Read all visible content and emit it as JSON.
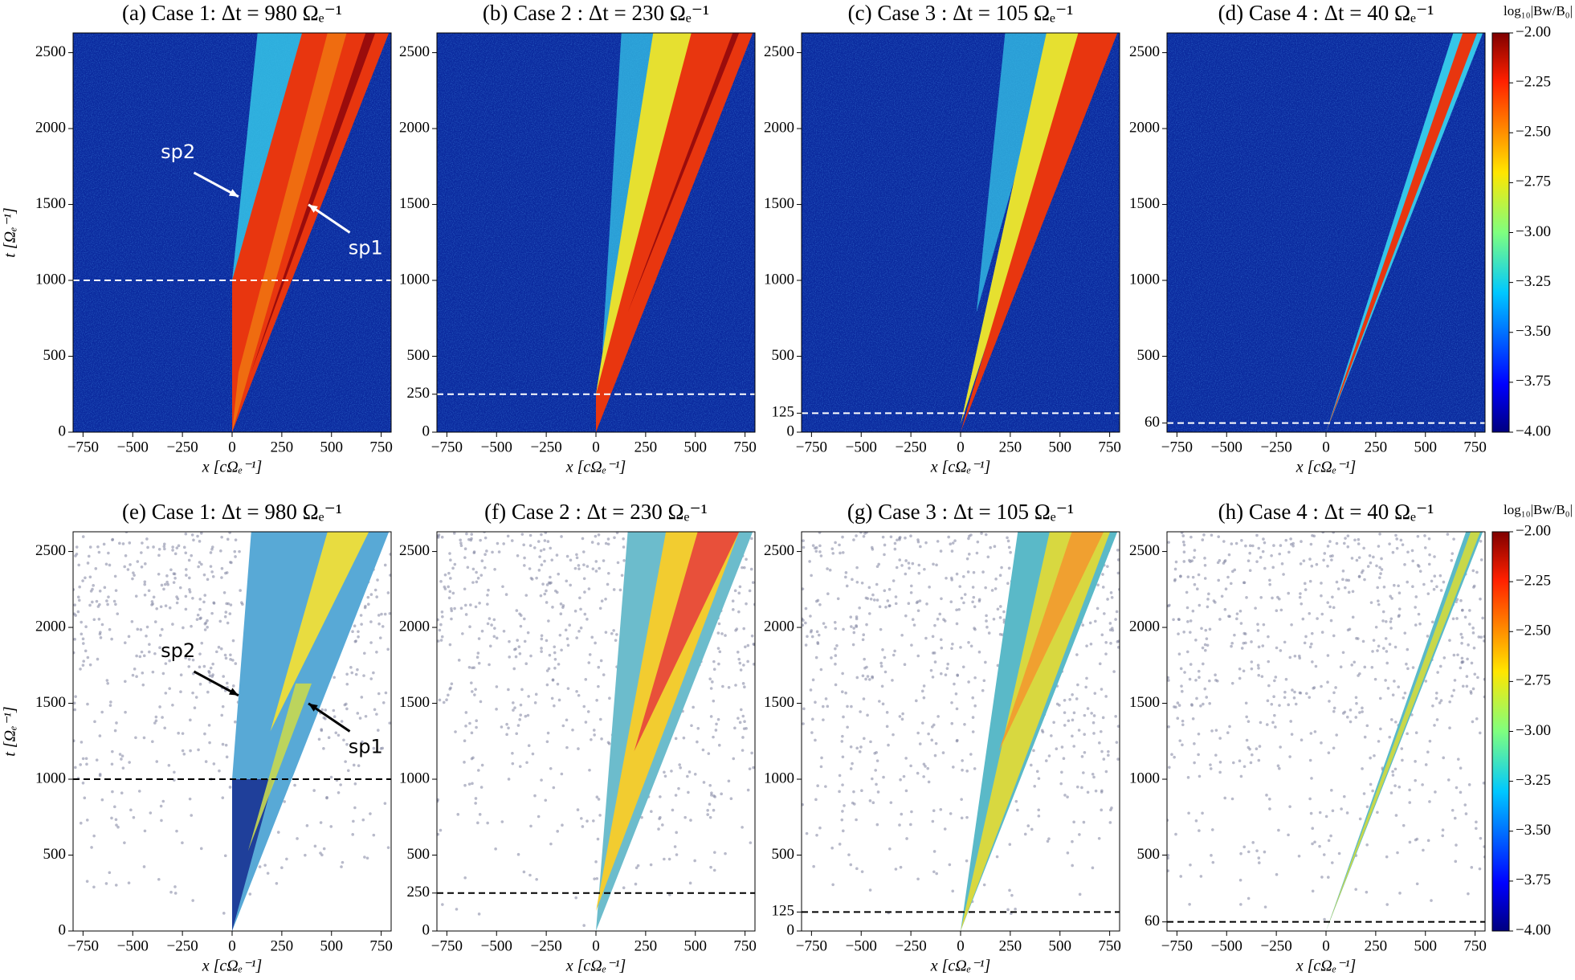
{
  "chart_data": [
    {
      "type": "heatmap",
      "title": "(a) Case 1: Δt = 980 Ωₑ⁻¹",
      "x_label": "x [cΩₑ⁻¹]",
      "y_label": "t [Ωₑ⁻¹]",
      "xlim": [
        -800,
        800
      ],
      "ylim": [
        0,
        2630
      ],
      "xticks": [
        {
          "value": -750,
          "label": "−750"
        },
        {
          "value": -500,
          "label": "−500"
        },
        {
          "value": -250,
          "label": "−250"
        },
        0,
        250,
        500,
        750
      ],
      "yticks": [
        0,
        500,
        1000,
        1500,
        2000,
        2500
      ],
      "hline": 1000,
      "hline_color": "#ffffff",
      "background": "#0b2a9e",
      "annotations": [
        {
          "text": "sp2"
        },
        {
          "text": "sp1"
        }
      ],
      "annotation_color": "#ffffff"
    },
    {
      "type": "heatmap",
      "title": "(b) Case 2 : Δt = 230 Ωₑ⁻¹",
      "x_label": "x [cΩₑ⁻¹]",
      "xlim": [
        -800,
        800
      ],
      "ylim": [
        0,
        2630
      ],
      "xticks": [
        {
          "value": -750,
          "label": "−750"
        },
        {
          "value": -500,
          "label": "−500"
        },
        {
          "value": -250,
          "label": "−250"
        },
        0,
        250,
        500,
        750
      ],
      "yticks": [
        0,
        250,
        500,
        1000,
        1500,
        2000,
        2500
      ],
      "hline": 250,
      "hline_color": "#ffffff",
      "background": "#0b2a9e"
    },
    {
      "type": "heatmap",
      "title": "(c) Case 3 : Δt = 105 Ωₑ⁻¹",
      "x_label": "x [cΩₑ⁻¹]",
      "xlim": [
        -800,
        800
      ],
      "ylim": [
        0,
        2630
      ],
      "xticks": [
        {
          "value": -750,
          "label": "−750"
        },
        {
          "value": -500,
          "label": "−500"
        },
        {
          "value": -250,
          "label": "−250"
        },
        0,
        250,
        500,
        750
      ],
      "yticks": [
        0,
        125,
        500,
        1000,
        1500,
        2000,
        2500
      ],
      "hline": 125,
      "hline_color": "#ffffff",
      "background": "#0b2a9e"
    },
    {
      "type": "heatmap",
      "title": "(d) Case 4 : Δt = 40 Ωₑ⁻¹",
      "x_label": "x [cΩₑ⁻¹]",
      "xlim": [
        -800,
        800
      ],
      "ylim": [
        0,
        2630
      ],
      "xticks": [
        {
          "value": -750,
          "label": "−750"
        },
        {
          "value": -500,
          "label": "−500"
        },
        {
          "value": -250,
          "label": "−250"
        },
        0,
        250,
        500,
        750
      ],
      "yticks": [
        60,
        500,
        1000,
        1500,
        2000,
        2500
      ],
      "hline": 60,
      "hline_color": "#ffffff",
      "background": "#0b2a9e",
      "colorbar": {
        "label": "log₁₀|Bw/B₀|",
        "colormap": "jet",
        "lim": [
          -4,
          -2
        ],
        "ticks": [
          {
            "value": -2,
            "label": "−2.00"
          },
          {
            "value": -2.25,
            "label": "−2.25"
          },
          {
            "value": -2.5,
            "label": "−2.50"
          },
          {
            "value": -2.75,
            "label": "−2.75"
          },
          {
            "value": -3,
            "label": "−3.00"
          },
          {
            "value": -3.25,
            "label": "−3.25"
          },
          {
            "value": -3.5,
            "label": "−3.50"
          },
          {
            "value": -3.75,
            "label": "−3.75"
          },
          {
            "value": -4,
            "label": "−4.00"
          }
        ]
      }
    },
    {
      "type": "heatmap",
      "title": "(e) Case 1: Δt = 980 Ωₑ⁻¹",
      "x_label": "x [cΩₑ⁻¹]",
      "y_label": "t [Ωₑ⁻¹]",
      "xlim": [
        -800,
        800
      ],
      "ylim": [
        0,
        2630
      ],
      "xticks": [
        {
          "value": -750,
          "label": "−750"
        },
        {
          "value": -500,
          "label": "−500"
        },
        {
          "value": -250,
          "label": "−250"
        },
        0,
        250,
        500,
        750
      ],
      "yticks": [
        0,
        500,
        1000,
        1500,
        2000,
        2500
      ],
      "hline": 1000,
      "hline_color": "#000000",
      "background": "#ffffff",
      "annotations": [
        {
          "text": "sp2"
        },
        {
          "text": "sp1"
        }
      ],
      "annotation_color": "#000000"
    },
    {
      "type": "heatmap",
      "title": "(f) Case 2 : Δt = 230 Ωₑ⁻¹",
      "x_label": "x [cΩₑ⁻¹]",
      "xlim": [
        -800,
        800
      ],
      "ylim": [
        0,
        2630
      ],
      "xticks": [
        {
          "value": -750,
          "label": "−750"
        },
        {
          "value": -500,
          "label": "−500"
        },
        {
          "value": -250,
          "label": "−250"
        },
        0,
        250,
        500,
        750
      ],
      "yticks": [
        0,
        250,
        500,
        1000,
        1500,
        2000,
        2500
      ],
      "hline": 250,
      "hline_color": "#000000",
      "background": "#ffffff"
    },
    {
      "type": "heatmap",
      "title": "(g) Case 3 : Δt = 105 Ωₑ⁻¹",
      "x_label": "x [cΩₑ⁻¹]",
      "xlim": [
        -800,
        800
      ],
      "ylim": [
        0,
        2630
      ],
      "xticks": [
        {
          "value": -750,
          "label": "−750"
        },
        {
          "value": -500,
          "label": "−500"
        },
        {
          "value": -250,
          "label": "−250"
        },
        0,
        250,
        500,
        750
      ],
      "yticks": [
        0,
        125,
        500,
        1000,
        1500,
        2000,
        2500
      ],
      "hline": 125,
      "hline_color": "#000000",
      "background": "#ffffff"
    },
    {
      "type": "heatmap",
      "title": "(h) Case 4 : Δt = 40 Ωₑ⁻¹",
      "x_label": "x [cΩₑ⁻¹]",
      "xlim": [
        -800,
        800
      ],
      "ylim": [
        0,
        2630
      ],
      "xticks": [
        {
          "value": -750,
          "label": "−750"
        },
        {
          "value": -500,
          "label": "−500"
        },
        {
          "value": -250,
          "label": "−250"
        },
        0,
        250,
        500,
        750
      ],
      "yticks": [
        60,
        500,
        1000,
        1500,
        2000,
        2500
      ],
      "hline": 60,
      "hline_color": "#000000",
      "background": "#ffffff",
      "colorbar": {
        "label": "log₁₀|Bw/B₀|",
        "colormap": "jet",
        "lim": [
          -4,
          -2
        ],
        "ticks": [
          {
            "value": -2,
            "label": "−2.00"
          },
          {
            "value": -2.25,
            "label": "−2.25"
          },
          {
            "value": -2.5,
            "label": "−2.50"
          },
          {
            "value": -2.75,
            "label": "−2.75"
          },
          {
            "value": -3,
            "label": "−3.00"
          },
          {
            "value": -3.25,
            "label": "−3.25"
          },
          {
            "value": -3.5,
            "label": "−3.50"
          },
          {
            "value": -3.75,
            "label": "−3.75"
          },
          {
            "value": -4,
            "label": "−4.00"
          }
        ]
      }
    }
  ]
}
